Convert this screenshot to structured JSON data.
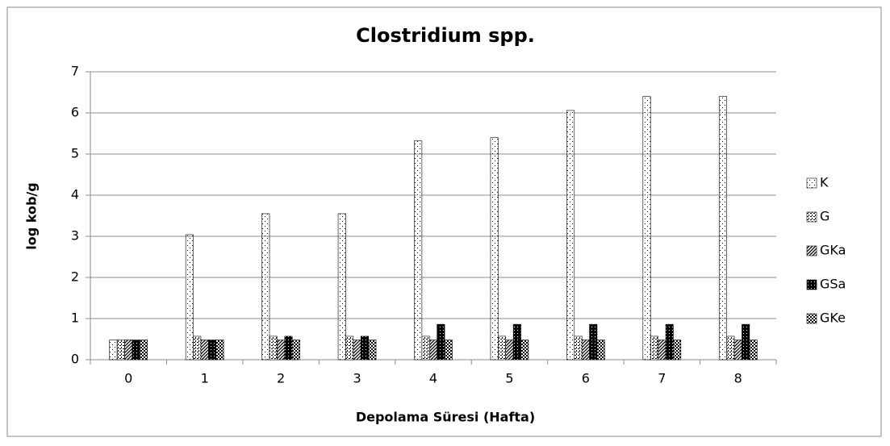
{
  "chart_data": {
    "type": "bar",
    "title": "Clostridium spp.",
    "xlabel": "Depolama Süresi (Hafta)",
    "ylabel": "log kob/g",
    "categories": [
      "0",
      "1",
      "2",
      "3",
      "4",
      "5",
      "6",
      "7",
      "8"
    ],
    "series": [
      {
        "name": "K",
        "color": "#000000",
        "pattern": "sparse-dots",
        "values": [
          0.48,
          3.04,
          3.55,
          3.55,
          5.32,
          5.4,
          6.06,
          6.4,
          6.4
        ]
      },
      {
        "name": "G",
        "color": "#000000",
        "pattern": "dense-dots",
        "values": [
          0.48,
          0.57,
          0.57,
          0.57,
          0.57,
          0.57,
          0.57,
          0.57,
          0.57
        ]
      },
      {
        "name": "GKa",
        "color": "#000000",
        "pattern": "diagonal",
        "values": [
          0.48,
          0.48,
          0.48,
          0.48,
          0.48,
          0.48,
          0.48,
          0.48,
          0.48
        ]
      },
      {
        "name": "GSa",
        "color": "#000000",
        "pattern": "dark-grid",
        "values": [
          0.48,
          0.48,
          0.57,
          0.57,
          0.86,
          0.86,
          0.86,
          0.86,
          0.86
        ]
      },
      {
        "name": "GKe",
        "color": "#000000",
        "pattern": "checker",
        "values": [
          0.48,
          0.48,
          0.48,
          0.48,
          0.48,
          0.48,
          0.48,
          0.48,
          0.48
        ]
      }
    ],
    "ylim": [
      0,
      7
    ],
    "yticks": [
      0,
      1,
      2,
      3,
      4,
      5,
      6,
      7
    ],
    "grid": true,
    "legend": "right"
  }
}
